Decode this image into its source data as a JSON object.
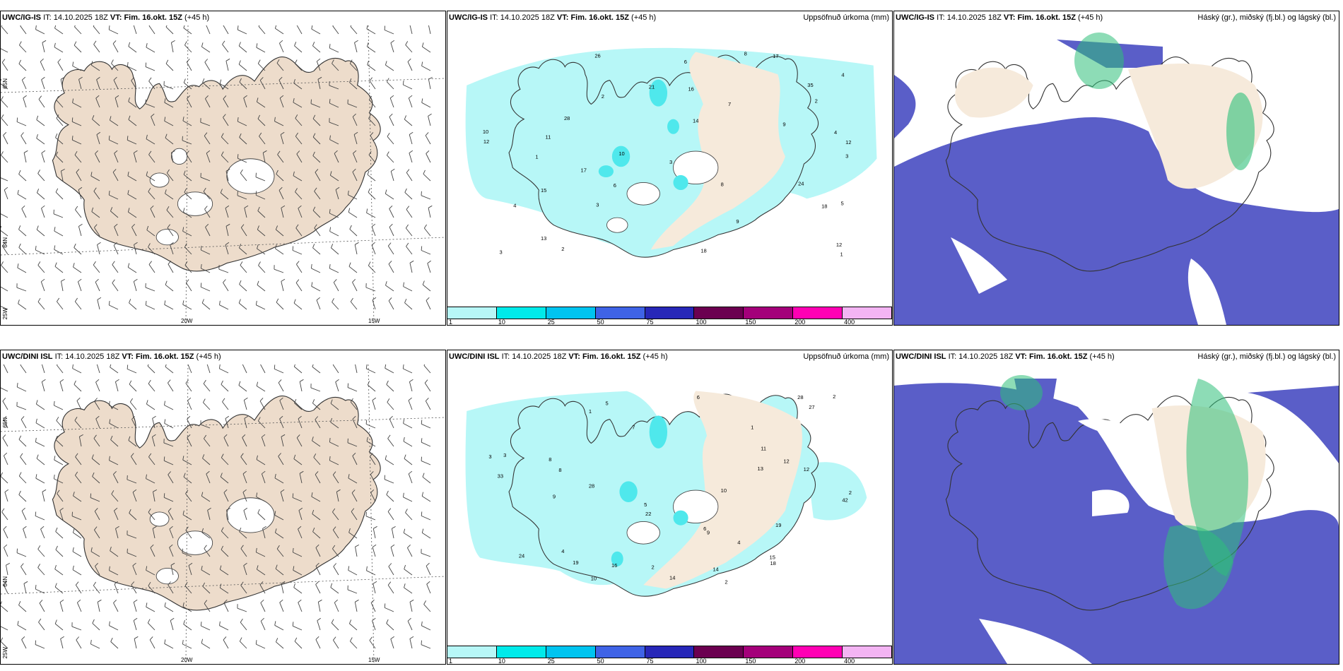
{
  "rows": [
    {
      "model": "UWC/IG-IS",
      "it_label": "IT:",
      "it": "14.10.2025 18Z",
      "vt_label": "VT:",
      "vt": "Fim. 16.okt. 15Z",
      "lead": "(+45 h)"
    },
    {
      "model": "UWC/DINI ISL",
      "it_label": "IT:",
      "it": "14.10.2025 18Z",
      "vt_label": "VT:",
      "vt": "Fim. 16.okt. 15Z",
      "lead": "(+45 h)"
    }
  ],
  "precip_title": "Uppsöfnuð úrkoma (mm)",
  "cloud_title": "Háský (gr.), miðský (fj.bl.) og lágský (bl.)",
  "graticule": {
    "lat_top": "65N",
    "lat_bottom": "64N",
    "lon_left": "25W",
    "lon_mid": "20W",
    "lon_right": "15W"
  },
  "precip_legend": {
    "ticks": [
      "1",
      "10",
      "25",
      "50",
      "75",
      "100",
      "150",
      "200",
      "400"
    ],
    "colors": [
      "#b7f7f7",
      "#00eaea",
      "#00c4f0",
      "#3f63e6",
      "#2727b8",
      "#6b0050",
      "#a4007a",
      "#ff00b4",
      "#f3b4f3"
    ]
  },
  "colors": {
    "land": "#f6eadb",
    "precip_light": "#b7f7f7",
    "precip_mid": "#4fe8ec",
    "low_cloud": "#5a5ec8",
    "high_cloud": "#2fc07a"
  },
  "precip_values_top": [
    "2",
    "4",
    "7",
    "12",
    "10",
    "5",
    "6",
    "8",
    "18",
    "35",
    "28",
    "24",
    "9",
    "3",
    "4",
    "3",
    "17",
    "10",
    "26",
    "21",
    "12",
    "16",
    "13",
    "15",
    "14",
    "17",
    "3",
    "9",
    "18",
    "4",
    "2",
    "1",
    "1",
    "6",
    "11",
    "12",
    "3",
    "8",
    "2"
  ],
  "precip_values_bottom": [
    "2",
    "1",
    "4",
    "8",
    "12",
    "14",
    "42",
    "28",
    "22",
    "19",
    "24",
    "3",
    "5",
    "6",
    "13",
    "28",
    "33",
    "27",
    "19",
    "12",
    "15",
    "9",
    "10",
    "18",
    "10",
    "11",
    "9",
    "8",
    "14",
    "7",
    "4",
    "2",
    "1",
    "16",
    "5",
    "2",
    "6",
    "3",
    "2"
  ]
}
